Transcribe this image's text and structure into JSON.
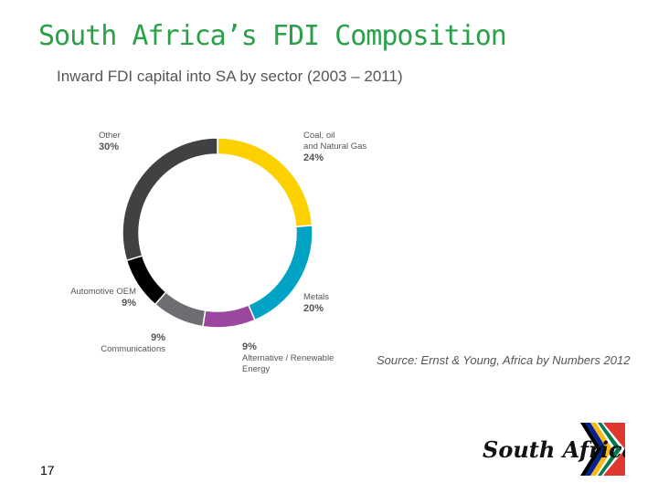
{
  "slide": {
    "title": "South Africa’s FDI Composition",
    "page_number": "17",
    "source": "Source: Ernst & Young, Africa by Numbers 2012"
  },
  "logo": {
    "text": "South Africa"
  },
  "chart_data": {
    "type": "pie",
    "title": "Inward FDI capital into SA by sector (2003 – 2011)",
    "slices": [
      {
        "name": "Coal, oil and Natural Gas",
        "name_lines": [
          "Coal, oil",
          "and Natural Gas"
        ],
        "value": 24,
        "label": "24%",
        "color": "#fdd000"
      },
      {
        "name": "Metals",
        "name_lines": [
          "Metals"
        ],
        "value": 20,
        "label": "20%",
        "color": "#00a3c4"
      },
      {
        "name": "Alternative / Renewable Energy",
        "name_lines": [
          "Alternative / Renewable",
          "Energy"
        ],
        "value": 9,
        "label": "9%",
        "color": "#9b479f"
      },
      {
        "name": "Communications",
        "name_lines": [
          "Communications"
        ],
        "value": 9,
        "label": "9%",
        "color": "#6d6e71"
      },
      {
        "name": "Automotive OEM",
        "name_lines": [
          "Automotive OEM"
        ],
        "value": 9,
        "label": "9%",
        "color": "#000000"
      },
      {
        "name": "Other",
        "name_lines": [
          "Other"
        ],
        "value": 30,
        "label": "30%",
        "color": "#414042"
      }
    ]
  }
}
